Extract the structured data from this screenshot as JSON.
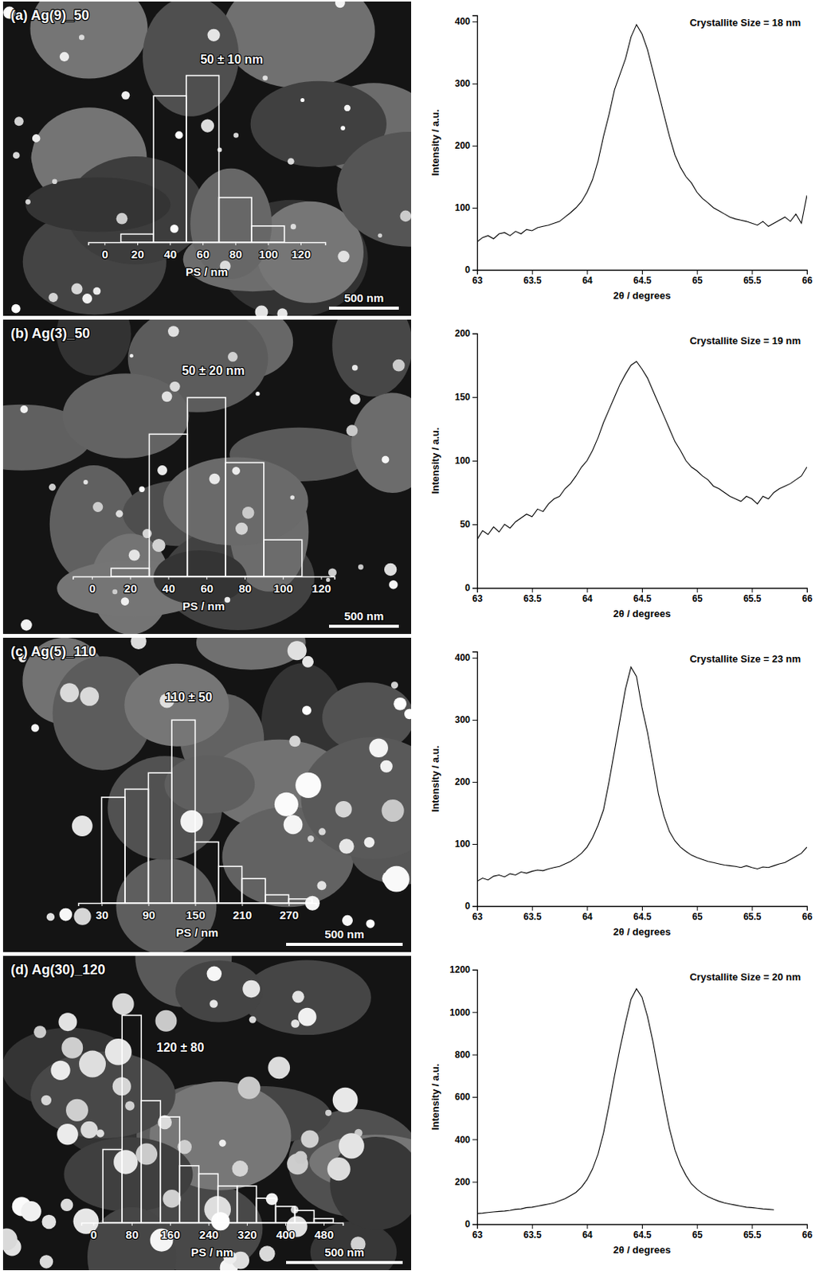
{
  "chart_data": [
    {
      "type": "histogram",
      "title": "(a) Ag(9)_50",
      "annotations": [
        "50 ± 10 nm",
        "500 nm"
      ],
      "x_label": "PS / nm",
      "bins": [
        10,
        30,
        50,
        70,
        90,
        110
      ],
      "counts": [
        2,
        36,
        41,
        11,
        4
      ],
      "xlim": [
        -10,
        135
      ],
      "xticks": [
        0,
        20,
        40,
        60,
        80,
        100,
        120
      ],
      "ylim": [
        0,
        56
      ],
      "tick_labels": "x",
      "color": "#ffffff"
    },
    {
      "type": "line",
      "annotations": [
        "Crystallite Size = 18 nm"
      ],
      "x_label": "2θ / degrees",
      "y_label": "Intensity / a.u.",
      "x": [
        63,
        63.05,
        63.1,
        63.15,
        63.2,
        63.25,
        63.3,
        63.35,
        63.4,
        63.45,
        63.5,
        63.55,
        63.6,
        63.65,
        63.7,
        63.75,
        63.8,
        63.85,
        63.9,
        63.95,
        64,
        64.05,
        64.1,
        64.15,
        64.2,
        64.25,
        64.3,
        64.35,
        64.4,
        64.45,
        64.5,
        64.55,
        64.6,
        64.65,
        64.7,
        64.75,
        64.8,
        64.85,
        64.9,
        64.95,
        65,
        65.05,
        65.1,
        65.15,
        65.2,
        65.25,
        65.3,
        65.35,
        65.4,
        65.45,
        65.5,
        65.55,
        65.6,
        65.65,
        65.7,
        65.75,
        65.8,
        65.85,
        65.9,
        65.95,
        66
      ],
      "values": [
        45,
        52,
        55,
        50,
        58,
        60,
        55,
        62,
        58,
        65,
        63,
        68,
        70,
        72,
        75,
        78,
        85,
        92,
        100,
        110,
        125,
        145,
        175,
        215,
        250,
        290,
        315,
        340,
        375,
        395,
        380,
        355,
        320,
        285,
        250,
        215,
        185,
        165,
        150,
        140,
        125,
        115,
        108,
        100,
        95,
        90,
        85,
        82,
        80,
        78,
        75,
        72,
        78,
        70,
        75,
        80,
        85,
        78,
        90,
        75,
        120
      ],
      "xlim": [
        63,
        66
      ],
      "xticks": [
        63,
        63.5,
        64,
        64.5,
        65,
        65.5,
        66
      ],
      "ylim": [
        0,
        410
      ],
      "yticks": [
        0,
        100,
        200,
        300,
        400
      ],
      "color": "#000000"
    },
    {
      "type": "histogram",
      "title": "(b) Ag(3)_50",
      "annotations": [
        "50 ± 20 nm",
        "500 nm"
      ],
      "x_label": "PS / nm",
      "bins": [
        10,
        30,
        50,
        70,
        90,
        110
      ],
      "counts": [
        2,
        35,
        44,
        28,
        9
      ],
      "xlim": [
        -10,
        127
      ],
      "xticks": [
        0,
        20,
        40,
        60,
        80,
        100,
        120
      ],
      "ylim": [
        0,
        56
      ],
      "tick_labels": "x",
      "color": "#ffffff"
    },
    {
      "type": "line",
      "annotations": [
        "Crystallite Size = 19 nm"
      ],
      "x_label": "2θ / degrees",
      "y_label": "Intensity / a.u.",
      "x": [
        63,
        63.05,
        63.1,
        63.15,
        63.2,
        63.25,
        63.3,
        63.35,
        63.4,
        63.45,
        63.5,
        63.55,
        63.6,
        63.65,
        63.7,
        63.75,
        63.8,
        63.85,
        63.9,
        63.95,
        64,
        64.05,
        64.1,
        64.15,
        64.2,
        64.25,
        64.3,
        64.35,
        64.4,
        64.45,
        64.5,
        64.55,
        64.6,
        64.65,
        64.7,
        64.75,
        64.8,
        64.85,
        64.9,
        64.95,
        65,
        65.05,
        65.1,
        65.15,
        65.2,
        65.25,
        65.3,
        65.35,
        65.4,
        65.45,
        65.5,
        65.55,
        65.6,
        65.65,
        65.7,
        65.75,
        65.8,
        65.85,
        65.9,
        65.95,
        66
      ],
      "values": [
        38,
        45,
        42,
        48,
        44,
        50,
        47,
        52,
        55,
        58,
        56,
        62,
        60,
        66,
        70,
        72,
        78,
        82,
        88,
        95,
        100,
        108,
        118,
        130,
        140,
        150,
        160,
        168,
        175,
        178,
        172,
        165,
        155,
        145,
        135,
        125,
        115,
        108,
        100,
        95,
        92,
        88,
        85,
        80,
        78,
        75,
        72,
        70,
        68,
        72,
        70,
        66,
        72,
        70,
        75,
        78,
        80,
        82,
        85,
        88,
        95
      ],
      "xlim": [
        63,
        66
      ],
      "xticks": [
        63,
        63.5,
        64,
        64.5,
        65,
        65.5,
        66
      ],
      "ylim": [
        0,
        200
      ],
      "yticks": [
        0,
        50,
        100,
        150,
        200
      ],
      "color": "#000000"
    },
    {
      "type": "histogram",
      "title": "(c) Ag(5)_110",
      "annotations": [
        "110 ± 50",
        "500 nm"
      ],
      "x_label": "PS / nm",
      "bins": [
        30,
        60,
        90,
        120,
        150,
        180,
        210,
        240,
        270,
        300
      ],
      "counts": [
        26,
        28,
        32,
        45,
        15,
        9,
        6,
        2,
        1
      ],
      "xlim": [
        0,
        305
      ],
      "xticks": [
        30,
        90,
        150,
        210,
        270
      ],
      "ylim": [
        0,
        56
      ],
      "tick_labels": "x",
      "color": "#ffffff"
    },
    {
      "type": "line",
      "annotations": [
        "Crystallite Size = 23 nm"
      ],
      "x_label": "2θ / degrees",
      "y_label": "Intensity / a.u.",
      "x": [
        63,
        63.05,
        63.1,
        63.15,
        63.2,
        63.25,
        63.3,
        63.35,
        63.4,
        63.45,
        63.5,
        63.55,
        63.6,
        63.65,
        63.7,
        63.75,
        63.8,
        63.85,
        63.9,
        63.95,
        64,
        64.05,
        64.1,
        64.15,
        64.2,
        64.25,
        64.3,
        64.35,
        64.4,
        64.45,
        64.5,
        64.55,
        64.6,
        64.65,
        64.7,
        64.75,
        64.8,
        64.85,
        64.9,
        64.95,
        65,
        65.05,
        65.1,
        65.15,
        65.2,
        65.25,
        65.3,
        65.35,
        65.4,
        65.45,
        65.5,
        65.55,
        65.6,
        65.65,
        65.7,
        65.75,
        65.8,
        65.85,
        65.9,
        65.95,
        66
      ],
      "values": [
        40,
        45,
        42,
        48,
        50,
        47,
        52,
        50,
        55,
        53,
        56,
        58,
        57,
        60,
        62,
        64,
        68,
        72,
        78,
        85,
        95,
        110,
        130,
        155,
        200,
        250,
        300,
        350,
        385,
        370,
        320,
        280,
        230,
        180,
        145,
        120,
        105,
        95,
        88,
        82,
        78,
        75,
        72,
        70,
        68,
        66,
        65,
        64,
        62,
        65,
        62,
        60,
        63,
        62,
        65,
        68,
        70,
        75,
        80,
        85,
        95
      ],
      "xlim": [
        63,
        66
      ],
      "xticks": [
        63,
        63.5,
        64,
        64.5,
        65,
        65.5,
        66
      ],
      "ylim": [
        0,
        410
      ],
      "yticks": [
        0,
        100,
        200,
        300,
        400
      ],
      "color": "#000000"
    },
    {
      "type": "histogram",
      "title": "(d) Ag(30)_120",
      "annotations": [
        "120 ± 80",
        "500 nm"
      ],
      "x_label": "PS / nm",
      "bins": [
        20,
        60,
        100,
        140,
        180,
        220,
        260,
        300,
        340,
        380,
        420,
        460,
        500
      ],
      "counts": [
        18,
        51,
        30,
        26,
        14,
        12,
        9,
        9,
        6,
        4,
        3,
        1
      ],
      "xlim": [
        -25,
        520
      ],
      "xticks": [
        0,
        80,
        160,
        240,
        320,
        400,
        480
      ],
      "ylim": [
        0,
        56
      ],
      "tick_labels": "x",
      "color": "#ffffff"
    },
    {
      "type": "line",
      "annotations": [
        "Crystallite Size = 20 nm"
      ],
      "x_label": "2θ / degrees",
      "y_label": "Intensity / a.u.",
      "x": [
        63,
        63.05,
        63.1,
        63.15,
        63.2,
        63.25,
        63.3,
        63.35,
        63.4,
        63.45,
        63.5,
        63.55,
        63.6,
        63.65,
        63.7,
        63.75,
        63.8,
        63.85,
        63.9,
        63.95,
        64,
        64.05,
        64.1,
        64.15,
        64.2,
        64.25,
        64.3,
        64.35,
        64.4,
        64.45,
        64.5,
        64.55,
        64.6,
        64.65,
        64.7,
        64.75,
        64.8,
        64.85,
        64.9,
        64.95,
        65,
        65.05,
        65.1,
        65.15,
        65.2,
        65.25,
        65.3,
        65.35,
        65.4,
        65.45,
        65.5,
        65.55,
        65.6,
        65.65,
        65.7
      ],
      "values": [
        50,
        52,
        55,
        58,
        60,
        62,
        65,
        70,
        72,
        78,
        80,
        85,
        90,
        95,
        100,
        110,
        120,
        135,
        150,
        175,
        210,
        260,
        330,
        430,
        560,
        700,
        830,
        950,
        1060,
        1110,
        1070,
        980,
        860,
        720,
        580,
        450,
        350,
        280,
        230,
        190,
        165,
        145,
        130,
        118,
        108,
        100,
        95,
        90,
        85,
        80,
        78,
        75,
        72,
        70,
        68
      ],
      "xlim": [
        63,
        66
      ],
      "xticks": [
        63,
        63.5,
        64,
        64.5,
        65,
        65.5,
        66
      ],
      "ylim": [
        0,
        1200
      ],
      "yticks": [
        0,
        200,
        400,
        600,
        800,
        1000,
        1200
      ],
      "color": "#000000"
    }
  ]
}
